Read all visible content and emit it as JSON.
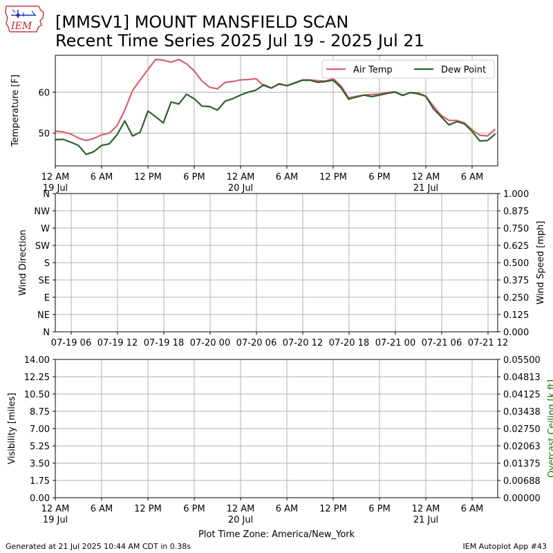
{
  "header": {
    "title_line1": "[MMSV1] MOUNT MANSFIELD SCAN",
    "title_line2": "Recent Time Series 2025 Jul 19 - 2025 Jul 21",
    "logo_text": "IEM"
  },
  "footer": {
    "generated": "Generated at 21 Jul 2025 10:44 AM CDT in 0.38s",
    "app": "IEM Autoplot App #43"
  },
  "colors": {
    "air_temp": "#d9606a",
    "dew_point": "#2e5e2e",
    "grid": "#b0b0b0",
    "ceiling_label": "#008000"
  },
  "chart_data": [
    {
      "type": "line",
      "ylabel": "Temperature [F]",
      "ylim": [
        42,
        69
      ],
      "y_ticks": [
        "50",
        "60"
      ],
      "x_tick_labels": [
        [
          "12 AM",
          "19 Jul"
        ],
        [
          "6 AM",
          ""
        ],
        [
          "12 PM",
          ""
        ],
        [
          "6 PM",
          ""
        ],
        [
          "12 AM",
          "20 Jul"
        ],
        [
          "6 AM",
          ""
        ],
        [
          "12 PM",
          ""
        ],
        [
          "6 PM",
          ""
        ],
        [
          "12 AM",
          "21 Jul"
        ],
        [
          "6 AM",
          ""
        ]
      ],
      "x_hours_range": [
        0,
        57
      ],
      "legend": "top-right",
      "grid": true,
      "series": [
        {
          "name": "Air Temp",
          "x_hours": [
            0,
            1,
            2,
            3,
            4,
            5,
            6,
            7,
            8,
            9,
            10,
            11,
            12,
            13,
            14,
            15,
            16,
            17,
            18,
            19,
            20,
            21,
            22,
            23,
            24,
            25,
            26,
            27,
            28,
            29,
            30,
            31,
            32,
            33,
            34,
            35,
            36,
            37,
            38,
            39,
            40,
            41,
            42,
            43,
            44,
            45,
            46,
            47,
            48,
            49,
            50,
            51,
            52,
            53,
            54,
            55,
            56,
            57
          ],
          "values": [
            50.5,
            50.3,
            49.8,
            48.8,
            48.2,
            48.7,
            49.6,
            50.0,
            51.8,
            55.6,
            60.4,
            63.0,
            65.5,
            68.0,
            67.8,
            67.3,
            68.0,
            66.9,
            65.2,
            62.7,
            61.2,
            60.8,
            62.4,
            62.6,
            63.0,
            63.1,
            63.3,
            61.6,
            61.0,
            62.1,
            61.6,
            62.3,
            63.0,
            63.0,
            62.8,
            62.7,
            63.3,
            61.6,
            58.6,
            59.0,
            59.3,
            59.4,
            59.6,
            59.9,
            60.1,
            59.3,
            59.9,
            59.8,
            59.0,
            56.6,
            54.3,
            53.1,
            53.1,
            52.5,
            50.8,
            49.5,
            49.3,
            51.0
          ]
        },
        {
          "name": "Dew Point",
          "x_hours": [
            0,
            1,
            2,
            3,
            4,
            5,
            6,
            7,
            8,
            9,
            10,
            11,
            12,
            13,
            14,
            15,
            16,
            17,
            18,
            19,
            20,
            21,
            22,
            23,
            24,
            25,
            26,
            27,
            28,
            29,
            30,
            31,
            32,
            33,
            34,
            35,
            36,
            37,
            38,
            39,
            40,
            41,
            42,
            43,
            44,
            45,
            46,
            47,
            48,
            49,
            50,
            51,
            52,
            53,
            54,
            55,
            56,
            57
          ],
          "values": [
            48.4,
            48.5,
            47.8,
            47.0,
            44.8,
            45.5,
            47.0,
            47.4,
            49.6,
            53.0,
            49.3,
            50.2,
            55.4,
            54.0,
            52.5,
            57.6,
            57.1,
            59.5,
            58.4,
            56.6,
            56.5,
            55.6,
            57.8,
            58.4,
            59.3,
            60.0,
            60.5,
            61.8,
            61.0,
            62.0,
            61.6,
            62.2,
            62.9,
            62.9,
            62.4,
            62.6,
            62.9,
            61.1,
            58.3,
            58.8,
            59.3,
            58.9,
            59.3,
            59.7,
            60.0,
            59.2,
            59.9,
            59.6,
            59.0,
            55.9,
            54.0,
            52.0,
            52.8,
            52.3,
            50.4,
            48.1,
            48.2,
            49.8
          ]
        }
      ]
    },
    {
      "type": "line",
      "ylabel": "Wind Direction",
      "y2label": "Wind Speed [mph]",
      "y_ticks": [
        "N",
        "NE",
        "E",
        "SE",
        "S",
        "SW",
        "W",
        "NW",
        "N"
      ],
      "y2_ticks": [
        "0.000",
        "0.125",
        "0.250",
        "0.375",
        "0.500",
        "0.625",
        "0.750",
        "0.875",
        "1.000"
      ],
      "ylim": [
        0,
        360
      ],
      "y2lim": [
        0,
        1
      ],
      "x_tick_labels": [
        "07-19 06",
        "07-19 12",
        "07-19 18",
        "07-20 00",
        "07-20 06",
        "07-20 12",
        "07-20 18",
        "07-21 00",
        "07-21 06",
        "07-21 12"
      ],
      "grid": true,
      "series": []
    },
    {
      "type": "line",
      "ylabel": "Visibility [miles]",
      "y2label": "Overcast Ceiling [k ft]",
      "y_ticks": [
        "0.00",
        "1.75",
        "3.50",
        "5.25",
        "7.00",
        "8.75",
        "10.50",
        "12.25",
        "14.00"
      ],
      "y2_ticks": [
        "0.00000",
        "0.00688",
        "0.01375",
        "0.02063",
        "0.02750",
        "0.03438",
        "0.04125",
        "0.04813",
        "0.05500"
      ],
      "ylim": [
        0,
        14
      ],
      "y2lim": [
        0,
        0.055
      ],
      "x_tick_labels": [
        [
          "12 AM",
          "19 Jul"
        ],
        [
          "6 AM",
          ""
        ],
        [
          "12 PM",
          ""
        ],
        [
          "6 PM",
          ""
        ],
        [
          "12 AM",
          "20 Jul"
        ],
        [
          "6 AM",
          ""
        ],
        [
          "12 PM",
          ""
        ],
        [
          "6 PM",
          ""
        ],
        [
          "12 AM",
          "21 Jul"
        ],
        [
          "6 AM",
          ""
        ]
      ],
      "xlabel": "Plot Time Zone: America/New_York",
      "grid": true,
      "series": []
    }
  ]
}
